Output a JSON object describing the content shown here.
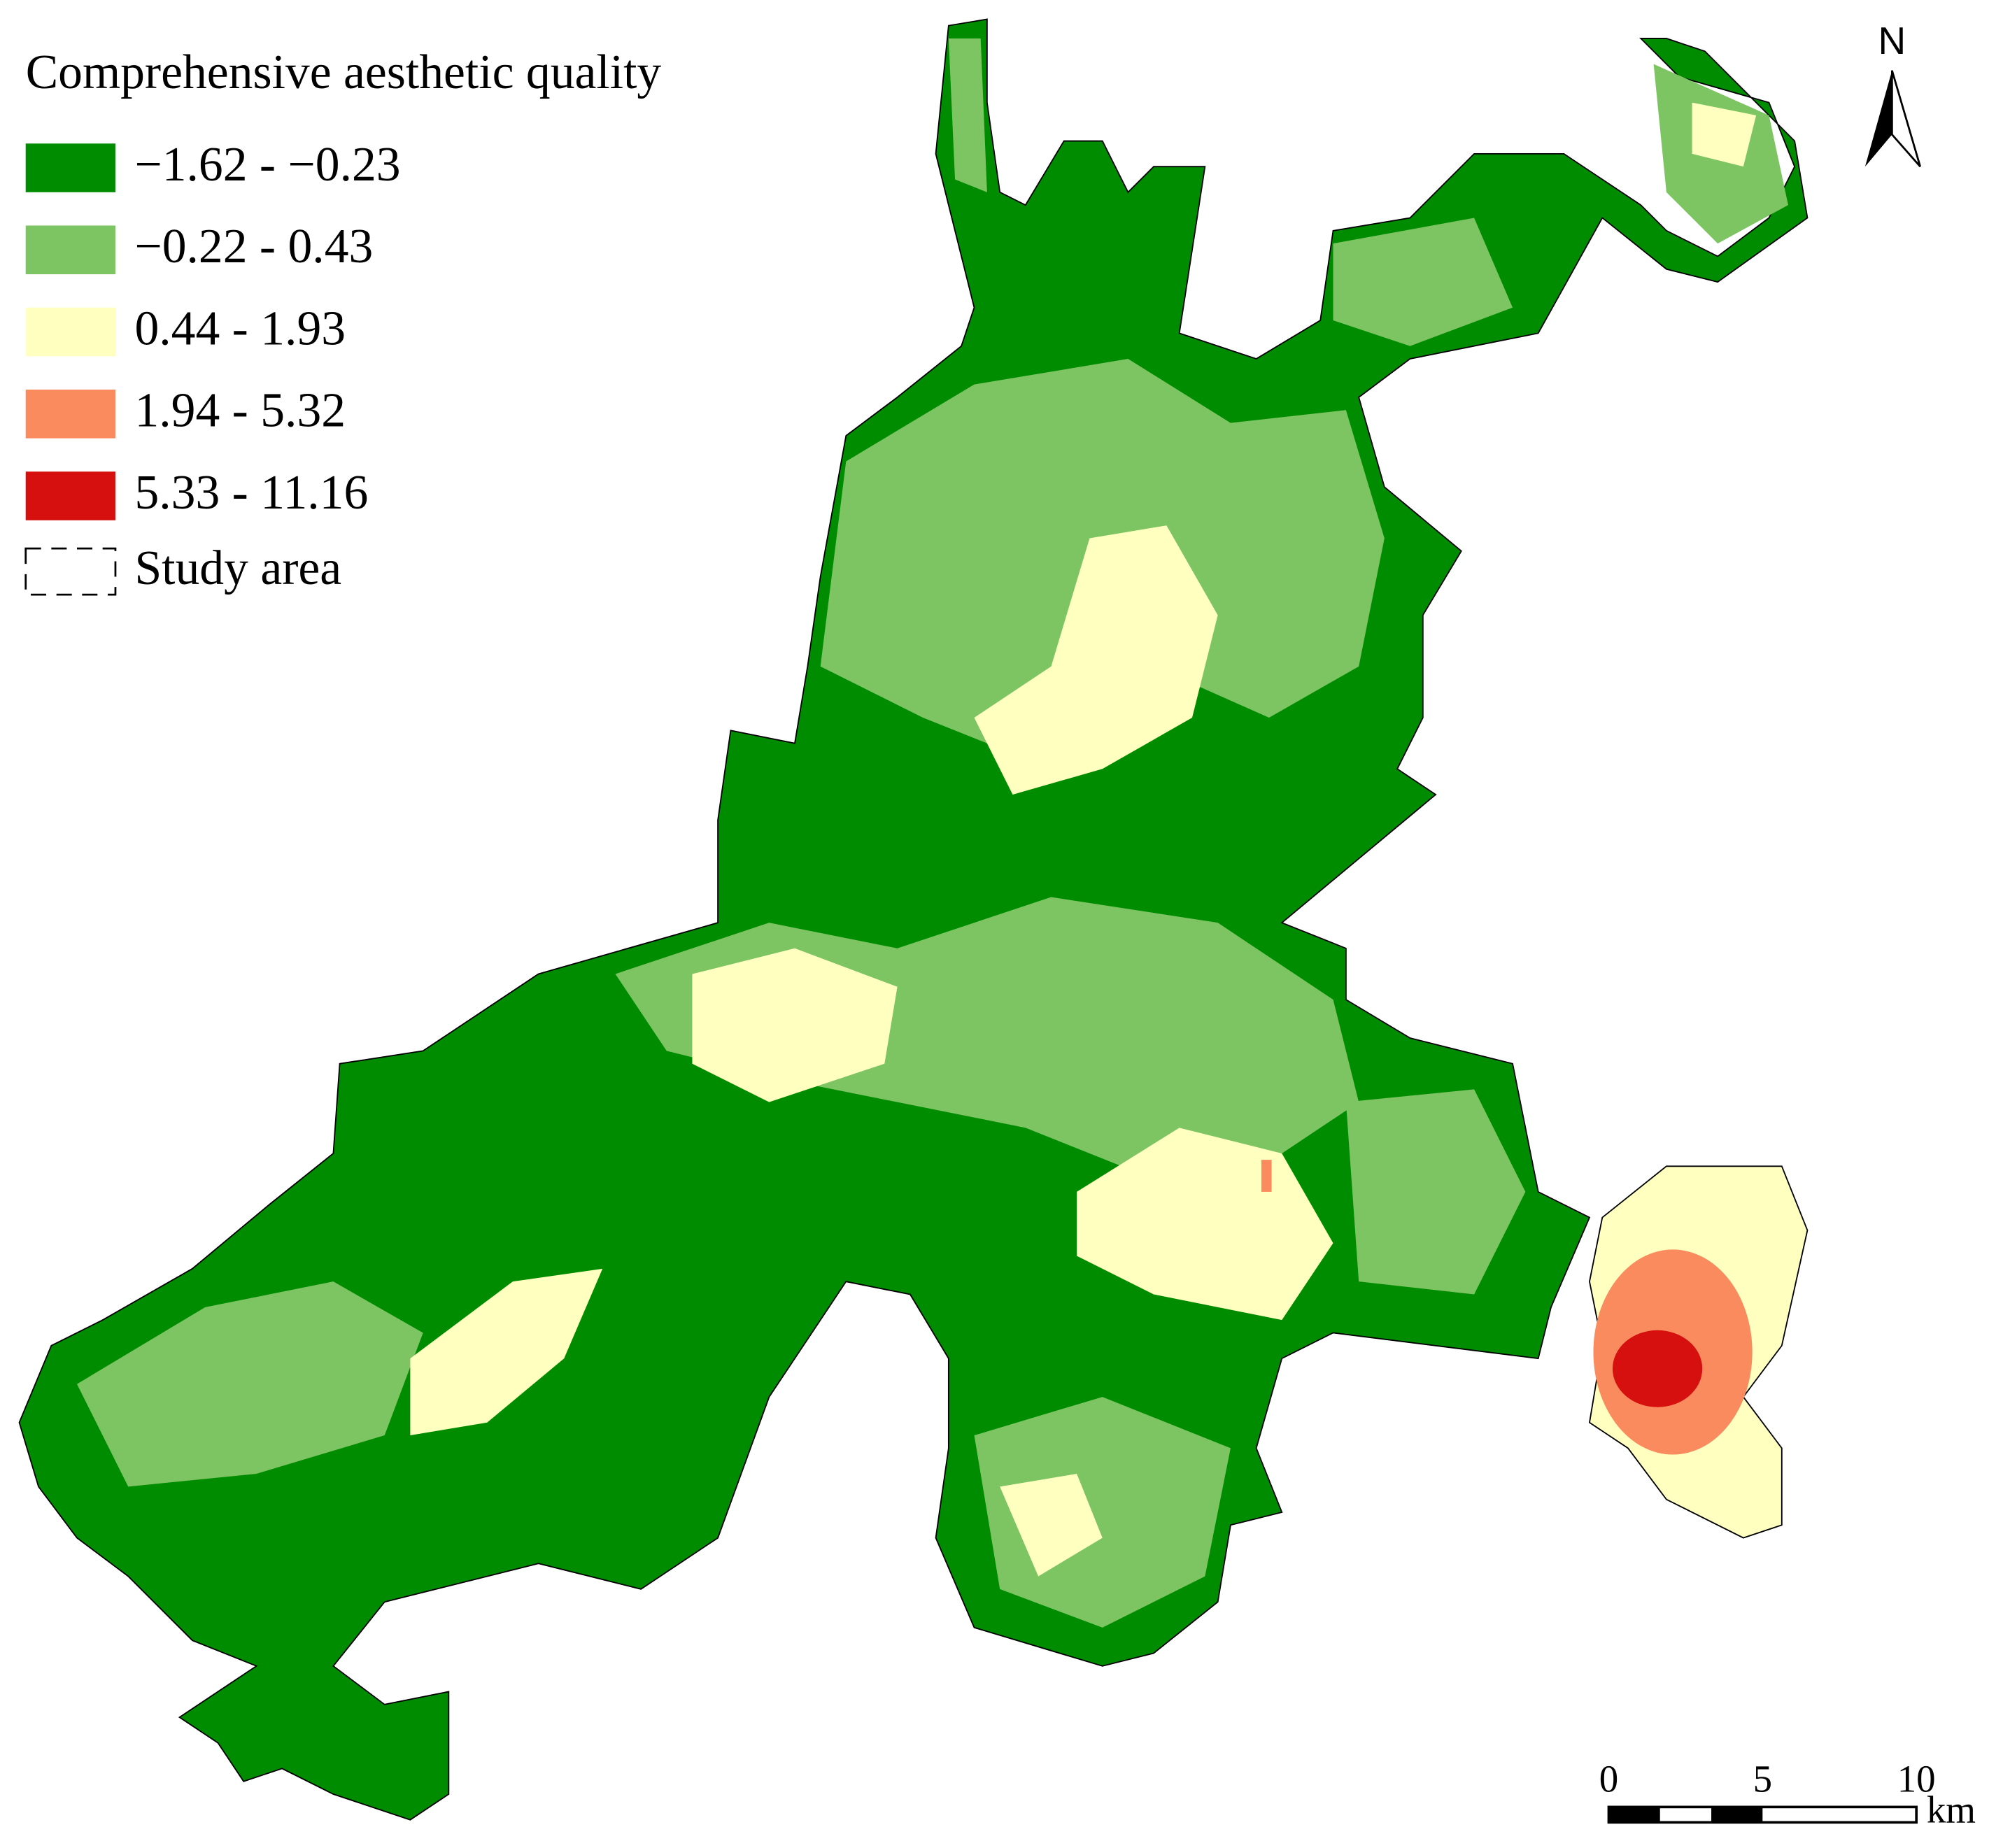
{
  "legend": {
    "title": "Comprehensive aesthetic quality",
    "items": [
      {
        "label": "−1.62 - −0.23",
        "color": "#008c00"
      },
      {
        "label": "−0.22 - 0.43",
        "color": "#7dc462"
      },
      {
        "label": "0.44 - 1.93",
        "color": "#ffffc0"
      },
      {
        "label": "1.94 - 5.32",
        "color": "#f98b5e"
      },
      {
        "label": "5.33 - 11.16",
        "color": "#d60f0f"
      }
    ],
    "boundary_label": "Study area"
  },
  "north_arrow": {
    "label": "N"
  },
  "scale_bar": {
    "ticks": [
      0,
      5,
      10
    ],
    "unit": "km"
  }
}
